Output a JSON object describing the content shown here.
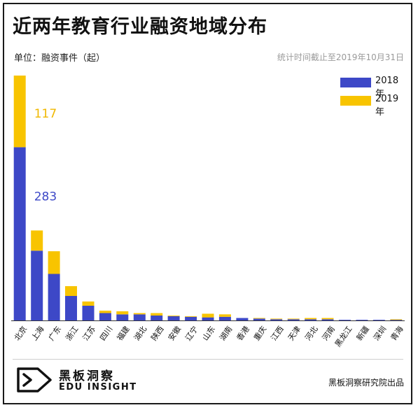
{
  "title": "近两年教育行业融资地域分布",
  "unit_label": "单位：融资事件（起）",
  "stat_note": "统计时间截止至2019年10月31日",
  "brand": {
    "name_cn": "黑板洞察",
    "name_en": "EDU INSIGHT",
    "logo": "play-arrow-logo-icon"
  },
  "source": "黑板洞察研究院出品",
  "colors": {
    "s2018": "#3d48c7",
    "s2019": "#f8c400",
    "label2018": "#3d48c7",
    "label2019": "#f0b800"
  },
  "chart_data": {
    "type": "bar",
    "stacked": true,
    "categories": [
      "北京",
      "上海",
      "广东",
      "浙江",
      "江苏",
      "四川",
      "福建",
      "湖北",
      "陕西",
      "安徽",
      "辽宁",
      "山东",
      "湖南",
      "香港",
      "重庆",
      "江西",
      "天津",
      "河北",
      "河南",
      "黑龙江",
      "新疆",
      "深圳",
      "青海"
    ],
    "series": [
      {
        "name": "2018年",
        "values": [
          283,
          114,
          76,
          40,
          24,
          12,
          10,
          10,
          8,
          7,
          6,
          5,
          6,
          4,
          3,
          2,
          2,
          2,
          2,
          1,
          1,
          1,
          1
        ]
      },
      {
        "name": "2019年",
        "values": [
          117,
          33,
          37,
          16,
          7,
          4,
          5,
          2,
          4,
          1,
          1,
          6,
          4,
          0,
          1,
          1,
          1,
          2,
          2,
          0,
          0,
          0,
          1
        ]
      }
    ],
    "data_labels": [
      {
        "category": "北京",
        "series": "2018年",
        "text": "283"
      },
      {
        "category": "北京",
        "series": "2019年",
        "text": "117"
      }
    ],
    "ylim": [
      0,
      400
    ],
    "grid": false,
    "legend": "top-right"
  }
}
